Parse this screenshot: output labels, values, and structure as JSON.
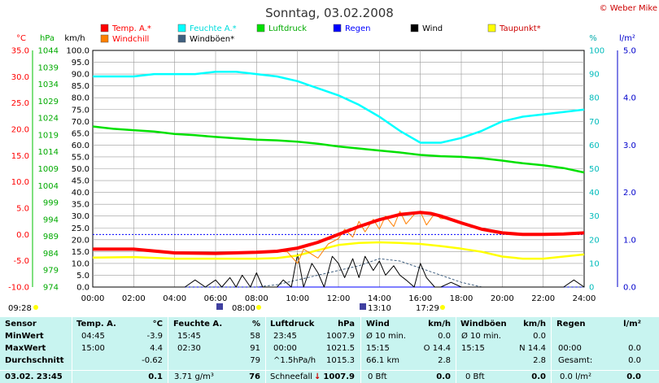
{
  "title": "Sonntag, 03.02.2008",
  "credit": "© Weber Mike",
  "legend": [
    {
      "label": "Temp. A.*",
      "color": "#ff0000",
      "text_color": "#ff0000"
    },
    {
      "label": "Feuchte A.*",
      "color": "#00ffff",
      "text_color": "#00dddd"
    },
    {
      "label": "Luftdruck",
      "color": "#00e000",
      "text_color": "#00aa00"
    },
    {
      "label": "Regen",
      "color": "#0000ff",
      "text_color": "#0000ff"
    },
    {
      "label": "Wind",
      "color": "#000000",
      "text_color": "#000000"
    },
    {
      "label": "Taupunkt*",
      "color": "#ffff00",
      "text_color": "#cc0000"
    },
    {
      "label": "Windchill",
      "color": "#ff7f00",
      "text_color": "#ff0000"
    },
    {
      "label": "Windböen*",
      "color": "#406080",
      "text_color": "#000000"
    }
  ],
  "axis_units": {
    "temp": "°C",
    "pressure": "hPa",
    "wind": "km/h",
    "humidity": "%",
    "rain": "l/m²"
  },
  "axis_ticks": {
    "temp": [
      "35.0",
      "30.0",
      "25.0",
      "20.0",
      "15.0",
      "10.0",
      "5.0",
      "0.0",
      "-5.0",
      "-10.0"
    ],
    "pressure": [
      "1044",
      "1039",
      "1034",
      "1029",
      "1024",
      "1019",
      "1014",
      "1009",
      "1004",
      "999",
      "994",
      "989",
      "984",
      "979",
      "974"
    ],
    "wind": [
      "100.0",
      "95.0",
      "90.0",
      "85.0",
      "80.0",
      "75.0",
      "70.0",
      "65.0",
      "60.0",
      "55.0",
      "50.0",
      "45.0",
      "40.0",
      "35.0",
      "30.0",
      "25.0",
      "20.0",
      "15.0",
      "10.0",
      "5.0",
      "0.0"
    ],
    "humidity": [
      "100",
      "90",
      "80",
      "70",
      "60",
      "50",
      "40",
      "30",
      "20",
      "10",
      "0"
    ],
    "rain": [
      "5.0",
      "4.0",
      "3.0",
      "2.0",
      "1.0",
      "0.0"
    ]
  },
  "time_ticks": [
    "00:00",
    "02:00",
    "04:00",
    "06:00",
    "08:00",
    "10:00",
    "12:00",
    "14:00",
    "16:00",
    "18:00",
    "20:00",
    "22:00",
    "24:00"
  ],
  "sun_markers": {
    "sunrise": "09:28",
    "t1": "08:00",
    "t2": "13:10",
    "t3": "17:29"
  },
  "chart_data": {
    "type": "line",
    "title": "Sonntag, 03.02.2008",
    "x_unit": "hours",
    "series": [
      {
        "name": "Temp. A.*",
        "axis": "temp",
        "color": "#ff0000",
        "x": [
          0,
          2,
          4,
          6,
          8,
          9,
          10,
          11,
          12,
          13,
          14,
          15,
          16,
          16.5,
          17,
          18,
          19,
          20,
          21,
          22,
          23,
          24
        ],
        "y": [
          -2.8,
          -2.8,
          -3.5,
          -3.6,
          -3.4,
          -3.2,
          -2.6,
          -1.5,
          0.0,
          1.5,
          2.8,
          3.8,
          4.2,
          4.0,
          3.5,
          2.2,
          1.0,
          0.3,
          0.0,
          0.0,
          0.1,
          0.3
        ]
      },
      {
        "name": "Windchill",
        "axis": "temp",
        "color": "#ff7f00",
        "x": [
          0,
          2,
          4,
          6,
          8,
          9,
          9.5,
          10,
          10.3,
          11,
          11.5,
          12,
          12.3,
          12.7,
          13,
          13.3,
          13.7,
          14,
          14.3,
          14.7,
          15,
          15.3,
          15.7,
          16,
          16.3,
          16.7,
          17,
          17.5,
          18,
          19,
          20,
          21,
          22,
          23,
          24
        ],
        "y": [
          -2.8,
          -2.8,
          -3.5,
          -3.6,
          -3.4,
          -3.2,
          -3.3,
          -5.5,
          -2.8,
          -4.5,
          -1.8,
          -0.8,
          1.0,
          -0.5,
          2.5,
          0.5,
          2.9,
          1.0,
          3.5,
          1.5,
          4.4,
          2.0,
          3.8,
          4.3,
          1.8,
          4.0,
          3.0,
          3.0,
          2.0,
          0.8,
          0.3,
          0.0,
          0.0,
          0.1,
          0.3
        ]
      },
      {
        "name": "Taupunkt*",
        "axis": "temp",
        "color": "#ffff00",
        "x": [
          0,
          2,
          4,
          6,
          8,
          9,
          10,
          11,
          12,
          13,
          14,
          15,
          16,
          17,
          18,
          19,
          20,
          21,
          22,
          23,
          24
        ],
        "y": [
          -4.4,
          -4.3,
          -4.6,
          -4.6,
          -4.6,
          -4.5,
          -4.0,
          -3.0,
          -2.0,
          -1.6,
          -1.5,
          -1.6,
          -1.8,
          -2.2,
          -2.7,
          -3.3,
          -4.2,
          -4.6,
          -4.6,
          -4.2,
          -3.8
        ]
      },
      {
        "name": "Feuchte A.*",
        "axis": "humidity",
        "color": "#00ffff",
        "x": [
          0,
          1,
          2,
          3,
          4,
          5,
          6,
          7,
          8,
          9,
          10,
          11,
          12,
          13,
          14,
          15,
          16,
          17,
          18,
          19,
          20,
          21,
          22,
          23,
          24
        ],
        "y": [
          89,
          89,
          89,
          90,
          90,
          90,
          91,
          91,
          90,
          89,
          87,
          84,
          81,
          77,
          72,
          66,
          61,
          61,
          63,
          66,
          70,
          72,
          73,
          74,
          75
        ]
      },
      {
        "name": "Luftdruck",
        "axis": "pressure",
        "color": "#00e000",
        "x": [
          0,
          1,
          2,
          3,
          4,
          5,
          6,
          7,
          8,
          9,
          10,
          11,
          12,
          13,
          14,
          15,
          16,
          17,
          18,
          19,
          20,
          21,
          22,
          23,
          24
        ],
        "y": [
          1021.5,
          1020.8,
          1020.4,
          1020.0,
          1019.3,
          1018.9,
          1018.4,
          1018.0,
          1017.6,
          1017.4,
          1017.0,
          1016.4,
          1015.6,
          1015.0,
          1014.4,
          1013.8,
          1013.1,
          1012.7,
          1012.5,
          1012.1,
          1011.4,
          1010.6,
          1010.0,
          1009.2,
          1007.9
        ]
      },
      {
        "name": "Wind",
        "axis": "wind",
        "color": "#000000",
        "x": [
          0,
          4.5,
          5,
          5.5,
          6,
          6.3,
          6.7,
          7,
          7.3,
          7.7,
          8,
          8.3,
          9,
          9.3,
          9.7,
          10,
          10.3,
          10.7,
          11,
          11.3,
          11.7,
          12,
          12.3,
          12.7,
          13,
          13.3,
          13.7,
          14,
          14.3,
          14.7,
          15,
          15.3,
          15.7,
          16,
          16.3,
          16.7,
          17,
          17.5,
          18,
          18.5,
          19,
          19.5,
          20,
          20.5,
          21,
          21.5,
          22,
          22.5,
          23,
          23.5,
          24
        ],
        "y": [
          0,
          0,
          3,
          0,
          3,
          0,
          4,
          0,
          5,
          0,
          6,
          0,
          0,
          3,
          0,
          14,
          0,
          10,
          6,
          0,
          13,
          10,
          4,
          12,
          4,
          13,
          7,
          11,
          5,
          9,
          5,
          3,
          0,
          10,
          4,
          0,
          0,
          2,
          0,
          0,
          0,
          0,
          0,
          0,
          0,
          0,
          0,
          0,
          0,
          3,
          0
        ]
      },
      {
        "name": "Windböen*",
        "axis": "wind",
        "color": "#406080",
        "x": [
          0,
          8,
          9,
          10,
          11,
          12,
          13,
          14,
          15,
          16,
          17,
          18,
          19,
          24
        ],
        "y": [
          0,
          0,
          1,
          3,
          5,
          7,
          9,
          12,
          11,
          8,
          5,
          2,
          0,
          0
        ]
      },
      {
        "name": "Regen",
        "axis": "rain",
        "color": "#0000ff",
        "x": [
          0,
          24
        ],
        "y": [
          0,
          0
        ]
      }
    ],
    "reference_line": {
      "axis": "temp",
      "value": 0.0,
      "color": "#0000ff"
    },
    "ylim": {
      "temp": [
        -10,
        35
      ],
      "pressure": [
        974,
        1044
      ],
      "wind": [
        0,
        100
      ],
      "humidity": [
        0,
        100
      ],
      "rain": [
        0,
        5
      ]
    },
    "xlim": [
      0,
      24
    ]
  },
  "table": {
    "headers": {
      "sensor": "Sensor",
      "temp": "Temp. A.",
      "temp_unit": "°C",
      "hum": "Feuchte A.",
      "hum_unit": "%",
      "press": "Luftdruck",
      "press_unit": "hPa",
      "wind": "Wind",
      "wind_unit": "km/h",
      "gust": "Windböen",
      "gust_unit": "km/h",
      "rain": "Regen",
      "rain_unit": "l/m²"
    },
    "rows": [
      {
        "label": "MinWert",
        "temp_time": "04:45",
        "temp_val": "-3.9",
        "hum_time": "15:45",
        "hum_val": "58",
        "press_time": "23:45",
        "press_val": "1007.9",
        "wind_time": "Ø 10 min.",
        "wind_val": "0.0",
        "gust_time": "Ø 10 min.",
        "gust_val": "0.0",
        "rain_time": "",
        "rain_val": ""
      },
      {
        "label": "MaxWert",
        "temp_time": "15:00",
        "temp_val": "4.4",
        "hum_time": "02:30",
        "hum_val": "91",
        "press_time": "00:00",
        "press_val": "1021.5",
        "wind_time": "15:15",
        "wind_val": "O 14.4",
        "gust_time": "15:15",
        "gust_val": "N 14.4",
        "rain_time": "00:00",
        "rain_val": "0.0"
      },
      {
        "label": "Durchschnitt",
        "temp_time": "",
        "temp_val": "-0.62",
        "hum_time": "",
        "hum_val": "79",
        "press_time": "^1.5hPa/h",
        "press_val": "1015.3",
        "wind_time": "66.1 km",
        "wind_val": "2.8",
        "gust_time": "",
        "gust_val": "2.8",
        "rain_time": "Gesamt:",
        "rain_val": "0.0"
      }
    ],
    "current": {
      "label": "03.02. 23:45",
      "temp_val": "0.1",
      "hum_extra": "3.71 g/m³",
      "hum_val": "76",
      "press_extra": "Schneefall",
      "press_val": "1007.9",
      "wind_extra": "0 Bft",
      "wind_val": "0.0",
      "gust_extra": "0 Bft",
      "gust_val": "0.0",
      "rain_extra": "0.0 l/m²",
      "rain_val": "0.0"
    }
  }
}
